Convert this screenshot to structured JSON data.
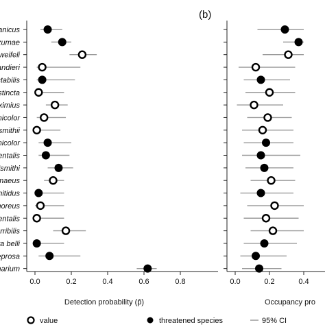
{
  "chart_data": [
    {
      "type": "scatter",
      "panel_label": "",
      "xlabel": "Detection probability (p̂)",
      "xlim": [
        0,
        0.8
      ],
      "xticks": [
        "0.0",
        "0.2",
        "0.4",
        "0.6",
        "0.8"
      ],
      "xtick_values": [
        0,
        0.2,
        0.4,
        0.6,
        0.8
      ],
      "species": [
        "anicus",
        "zumae",
        "weifeli",
        "andieri",
        "ctabilis",
        "stincta",
        "ximius",
        "nicolor",
        "smithii",
        "nicolor",
        "entalis",
        "'smithi",
        "maeus",
        "nitidus",
        "noreus",
        "entalis",
        "rribilis",
        "ra belli",
        "eprosa",
        "narium"
      ],
      "estimate": [
        0.07,
        0.15,
        0.26,
        0.04,
        0.04,
        0.02,
        0.11,
        0.05,
        0.01,
        0.07,
        0.06,
        0.13,
        0.1,
        0.02,
        0.03,
        0.01,
        0.17,
        0.01,
        0.08,
        0.62
      ],
      "ci_low": [
        0.03,
        0.09,
        0.19,
        0.01,
        0.01,
        0.0,
        0.06,
        0.01,
        0.0,
        0.02,
        0.02,
        0.07,
        0.05,
        0.0,
        0.0,
        0.0,
        0.1,
        0.0,
        0.02,
        0.56
      ],
      "ci_high": [
        0.15,
        0.2,
        0.34,
        0.25,
        0.22,
        0.16,
        0.18,
        0.17,
        0.14,
        0.2,
        0.19,
        0.21,
        0.16,
        0.16,
        0.16,
        0.16,
        0.28,
        0.16,
        0.25,
        0.67
      ],
      "threatened": [
        true,
        true,
        false,
        false,
        true,
        false,
        false,
        false,
        false,
        true,
        true,
        true,
        false,
        true,
        false,
        false,
        false,
        true,
        true,
        true
      ]
    },
    {
      "type": "scatter",
      "panel_label": "(b)",
      "xlabel": "Occupancy pro",
      "xlim": [
        0,
        0.4
      ],
      "xticks": [
        "0.0",
        "0.2",
        "0.4"
      ],
      "xtick_values": [
        0,
        0.2,
        0.4
      ],
      "estimate": [
        0.29,
        0.37,
        0.31,
        0.12,
        0.15,
        0.2,
        0.11,
        0.19,
        0.16,
        0.18,
        0.15,
        0.17,
        0.21,
        0.15,
        0.23,
        0.18,
        0.22,
        0.17,
        0.12,
        0.14
      ],
      "ci_low": [
        0.13,
        0.28,
        0.16,
        0.02,
        0.05,
        0.06,
        0.01,
        0.07,
        0.04,
        0.05,
        0.04,
        0.06,
        0.09,
        0.03,
        0.07,
        0.05,
        0.09,
        0.05,
        0.03,
        0.04
      ],
      "ci_high": [
        0.4,
        0.4,
        0.4,
        0.35,
        0.32,
        0.35,
        0.28,
        0.33,
        0.34,
        0.34,
        0.38,
        0.34,
        0.35,
        0.34,
        0.4,
        0.37,
        0.4,
        0.36,
        0.3,
        0.27
      ],
      "threatened": [
        true,
        true,
        false,
        false,
        true,
        false,
        false,
        false,
        false,
        true,
        true,
        true,
        false,
        true,
        false,
        false,
        false,
        true,
        true,
        true
      ]
    }
  ],
  "legend": {
    "items": [
      {
        "marker": "open-circle",
        "label": "value"
      },
      {
        "marker": "filled-circle",
        "label": "threatened species"
      },
      {
        "marker": "line",
        "label": "95% CI"
      }
    ]
  },
  "colors": {
    "point": "#000000",
    "ci": "#9a9a9a",
    "axis": "#222222"
  }
}
